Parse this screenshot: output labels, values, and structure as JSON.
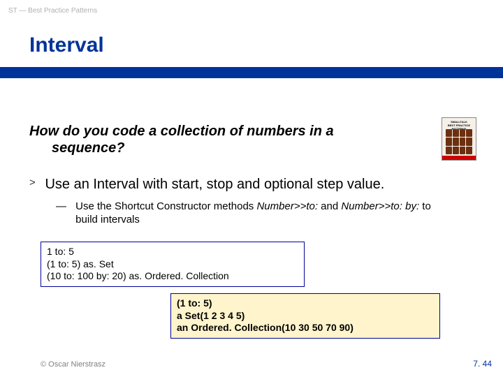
{
  "header": {
    "breadcrumb": "ST — Best Practice Patterns"
  },
  "title": "Interval",
  "colors": {
    "accent": "#003399",
    "result_bg": "#fff4cc",
    "box_border": "#000099"
  },
  "question": {
    "line1": "How do you code a collection of numbers in a",
    "line2": "sequence?"
  },
  "book": {
    "title_line1": "SMALLTALK",
    "title_line2": "BEST PRACTICE PATTERNS"
  },
  "answer": {
    "bullet": ">",
    "text": "Use an Interval with start, stop and optional step value.",
    "sub": {
      "dash": "—",
      "prefix": "Use the Shortcut Constructor methods ",
      "nb1": "Number>>to:",
      "mid": " and ",
      "nb2": "Number>>to: by:",
      "suffix": " to build intervals"
    }
  },
  "code1": {
    "l1": "1 to: 5",
    "l2": "(1 to: 5) as. Set",
    "l3": "(10 to: 100 by: 20) as. Ordered. Collection"
  },
  "code2": {
    "l1": "(1 to: 5)",
    "l2": "a Set(1 2 3 4 5)",
    "l3": "an Ordered. Collection(10 30 50 70 90)"
  },
  "footer": {
    "copyright": "© Oscar Nierstrasz",
    "page": "7. 44"
  }
}
